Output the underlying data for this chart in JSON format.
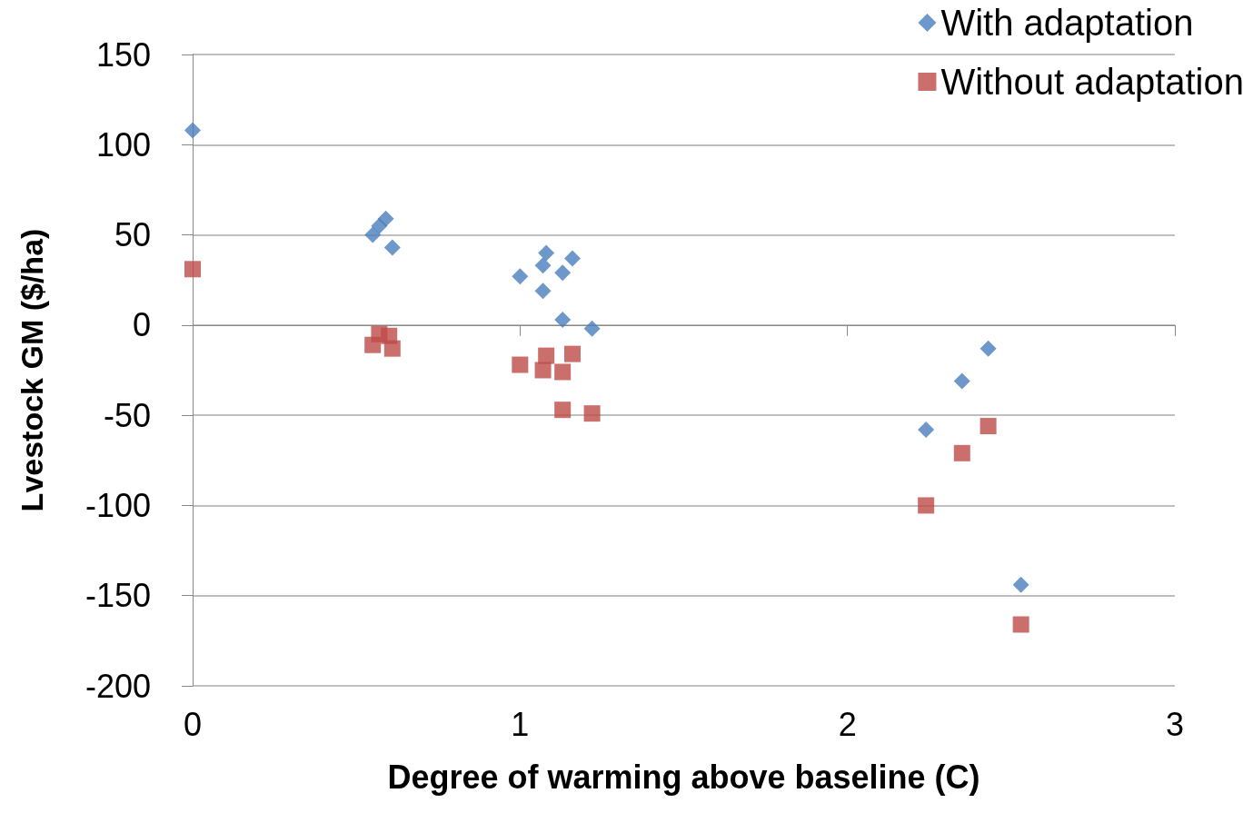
{
  "chart_data": {
    "type": "scatter",
    "xlabel": "Degree of warming above baseline (C)",
    "ylabel": "Lvestock GM ($/ha)",
    "xlim": [
      0,
      3
    ],
    "xticks": [
      0,
      1,
      2,
      3
    ],
    "ylim": [
      -200,
      150
    ],
    "yticks": [
      -200,
      -150,
      -100,
      -50,
      0,
      50,
      100,
      150
    ],
    "grid": "y",
    "legend": "top right",
    "series": [
      {
        "name": "With adaptation",
        "color": "#4a7ebb",
        "marker": "diamond",
        "x": [
          0,
          0.55,
          0.57,
          0.59,
          0.61,
          1.0,
          1.07,
          1.08,
          1.07,
          1.13,
          1.16,
          1.13,
          1.22,
          2.24,
          2.35,
          2.43,
          2.53
        ],
        "values": [
          108,
          50,
          55,
          59,
          43,
          27,
          33,
          40,
          19,
          29,
          37,
          3,
          -2,
          -58,
          -31,
          -13,
          -144
        ]
      },
      {
        "name": "Without adaptation",
        "color": "#be4b48",
        "marker": "square",
        "x": [
          0,
          0.55,
          0.57,
          0.6,
          0.61,
          1.0,
          1.07,
          1.08,
          1.13,
          1.13,
          1.16,
          1.22,
          2.24,
          2.35,
          2.43,
          2.53
        ],
        "values": [
          31,
          -11,
          -5,
          -6,
          -13,
          -22,
          -25,
          -17,
          -26,
          -47,
          -16,
          -49,
          -100,
          -71,
          -56,
          -166
        ]
      }
    ]
  }
}
